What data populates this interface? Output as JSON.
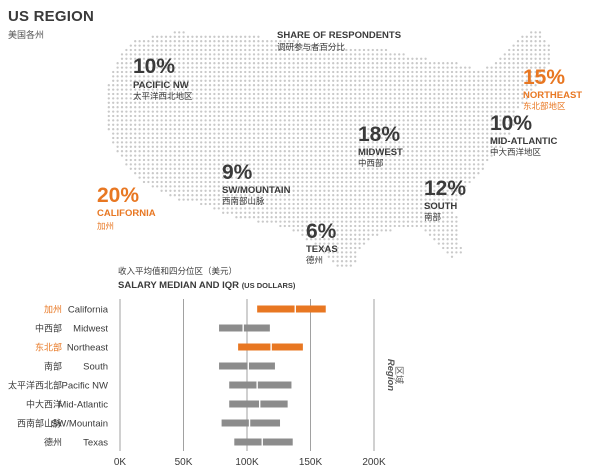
{
  "header": {
    "title": "US REGION",
    "subtitle_cn": "美国各州"
  },
  "share_heading": {
    "title": "SHARE OF RESPONDENTS",
    "title_cn": "调研参与者百分比"
  },
  "regions": [
    {
      "id": "pacific-nw",
      "pct": "10%",
      "name": "PACIFIC NW",
      "name_cn": "太平洋西北地区",
      "highlight": false
    },
    {
      "id": "northeast",
      "pct": "15%",
      "name": "NORTHEAST",
      "name_cn": "东北部地区",
      "highlight": true
    },
    {
      "id": "mid-atlantic",
      "pct": "10%",
      "name": "MID-ATLANTIC",
      "name_cn": "中大西洋地区",
      "highlight": false
    },
    {
      "id": "midwest",
      "pct": "18%",
      "name": "MIDWEST",
      "name_cn": "中西部",
      "highlight": false
    },
    {
      "id": "sw-mountain",
      "pct": "9%",
      "name": "SW/MOUNTAIN",
      "name_cn": "西南部山脉",
      "highlight": false
    },
    {
      "id": "california",
      "pct": "20%",
      "name": "CALIFORNIA",
      "name_cn": "加州",
      "highlight": true
    },
    {
      "id": "south",
      "pct": "12%",
      "name": "SOUTH",
      "name_cn": "南部",
      "highlight": false
    },
    {
      "id": "texas",
      "pct": "6%",
      "name": "TEXAS",
      "name_cn": "德州",
      "highlight": false
    }
  ],
  "salary_heading": {
    "title_cn": "收入平均值和四分位区（美元）",
    "title": "SALARY MEDIAN AND IQR",
    "title_suffix": "(US DOLLARS)"
  },
  "colors": {
    "accent": "#e87722",
    "neutral_bar": "#8c8c8c",
    "text": "#3a3a3a",
    "dots": "#c9c9c9"
  },
  "chart_data": {
    "type": "bar",
    "subtype": "horizontal-range-iqr",
    "title": "SALARY MEDIAN AND IQR (US DOLLARS)",
    "axis_side_label": "Region",
    "axis_side_label_cn": "区域",
    "xlim": [
      0,
      200000
    ],
    "xticks": [
      0,
      50000,
      100000,
      150000,
      200000
    ],
    "xtick_labels": [
      "0K",
      "50K",
      "100K",
      "150K",
      "200K"
    ],
    "grid": true,
    "series": [
      {
        "name": "California",
        "name_cn": "加州",
        "q1": 108000,
        "median": 138000,
        "q3": 162000,
        "highlight": true
      },
      {
        "name": "Midwest",
        "name_cn": "中西部",
        "q1": 78000,
        "median": 97000,
        "q3": 118000,
        "highlight": false
      },
      {
        "name": "Northeast",
        "name_cn": "东北部",
        "q1": 93000,
        "median": 119000,
        "q3": 144000,
        "highlight": true
      },
      {
        "name": "South",
        "name_cn": "南部",
        "q1": 78000,
        "median": 101000,
        "q3": 122000,
        "highlight": false
      },
      {
        "name": "Pacific NW",
        "name_cn": "太平洋西北部",
        "q1": 86000,
        "median": 108000,
        "q3": 135000,
        "highlight": false
      },
      {
        "name": "Mid-Atlantic",
        "name_cn": "中大西洋",
        "q1": 86000,
        "median": 110000,
        "q3": 132000,
        "highlight": false
      },
      {
        "name": "SW/Mountain",
        "name_cn": "西南部山脉",
        "q1": 80000,
        "median": 102000,
        "q3": 126000,
        "highlight": false
      },
      {
        "name": "Texas",
        "name_cn": "德州",
        "q1": 90000,
        "median": 112000,
        "q3": 136000,
        "highlight": false
      }
    ]
  }
}
